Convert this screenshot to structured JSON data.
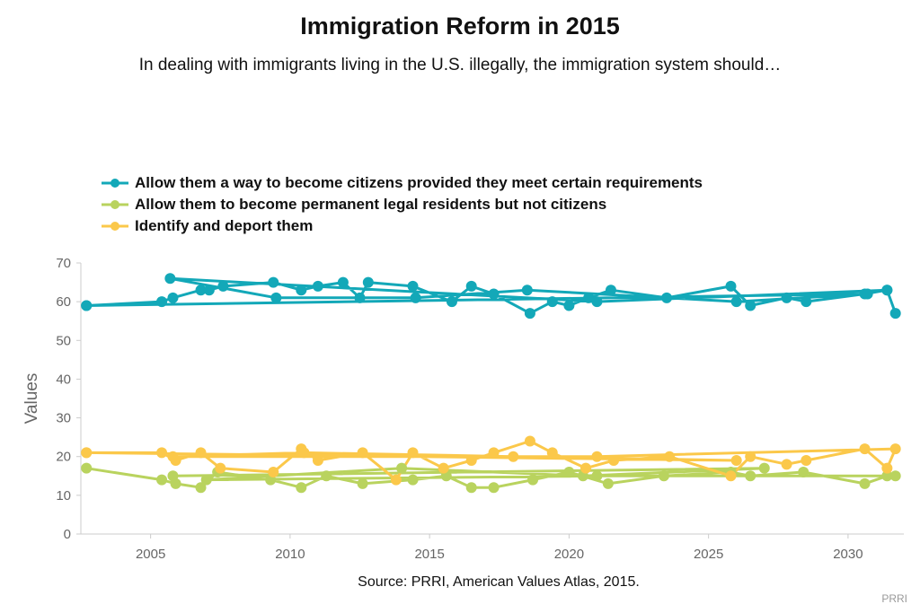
{
  "chart_data": {
    "type": "line",
    "title": "Immigration Reform in 2015",
    "subtitle": "In dealing with immigrants living in the U.S. illegally, the immigration system should…",
    "xlabel": "",
    "ylabel": "Values",
    "xlim": [
      2002.5,
      2032
    ],
    "ylim": [
      0,
      70
    ],
    "xticks": [
      2005,
      2010,
      2015,
      2020,
      2025,
      2030
    ],
    "yticks": [
      0,
      10,
      20,
      30,
      40,
      50,
      60,
      70
    ],
    "grid": false,
    "legend_position": "top-left",
    "source": "Source: PRRI, American Values Atlas, 2015.",
    "credit": "PRRI",
    "series": [
      {
        "name": "Allow them a way to become citizens provided they meet certain requirements",
        "color": "#13a8b8",
        "x": [
          2002.7,
          2005.4,
          2005.8,
          2006.8,
          2007.1,
          2007.6,
          2009.4,
          2010.4,
          2011.0,
          2011.9,
          2012.5,
          2012.8,
          2014.4,
          2015.8,
          2016.5,
          2017.3,
          2018.6,
          2019.4,
          2020.0,
          2020.7,
          2021.5,
          2023.5,
          2025.8,
          2026.5,
          2027.8,
          2028.5,
          2030.6,
          2031.4,
          2031.7,
          2031.4,
          2021.0,
          2005.7,
          2009.5,
          2014.5,
          2018.5,
          2026.0,
          2030.7,
          2002.7
        ],
        "y": [
          59,
          60,
          61,
          63,
          63,
          64,
          65,
          63,
          64,
          65,
          61,
          65,
          64,
          60,
          64,
          62,
          57,
          60,
          59,
          61,
          63,
          61,
          64,
          59,
          61,
          60,
          62,
          63,
          57,
          63,
          60,
          66,
          61,
          61,
          63,
          60,
          62,
          59
        ]
      },
      {
        "name": "Allow them to become permanent legal residents but not citizens",
        "color": "#b9d35e",
        "x": [
          2002.7,
          2005.4,
          2005.9,
          2006.8,
          2007.4,
          2009.3,
          2010.4,
          2011.3,
          2012.6,
          2014.4,
          2015.6,
          2016.5,
          2017.3,
          2018.7,
          2020.0,
          2021.4,
          2023.4,
          2025.8,
          2026.5,
          2028.4,
          2030.6,
          2031.4,
          2031.7,
          2021.0,
          2007.0,
          2014.0,
          2020.5,
          2027.0,
          2005.8
        ],
        "y": [
          17,
          14,
          13,
          12,
          16,
          14,
          12,
          15,
          13,
          14,
          15,
          12,
          12,
          14,
          16,
          13,
          15,
          16,
          15,
          16,
          13,
          15,
          15,
          15,
          14,
          17,
          15,
          17,
          15
        ]
      },
      {
        "name": "Identify and deport them",
        "color": "#fbc84a",
        "x": [
          2002.7,
          2005.4,
          2005.9,
          2006.8,
          2007.5,
          2009.4,
          2010.4,
          2011.0,
          2012.6,
          2013.8,
          2014.4,
          2015.5,
          2016.5,
          2017.3,
          2018.6,
          2019.4,
          2020.6,
          2021.6,
          2023.6,
          2025.8,
          2026.5,
          2027.8,
          2028.5,
          2030.6,
          2031.4,
          2031.7,
          2021.0,
          2005.8,
          2010.5,
          2018.0,
          2026.0,
          2002.7
        ],
        "y": [
          21,
          21,
          19,
          21,
          17,
          16,
          22,
          19,
          21,
          14,
          21,
          17,
          19,
          21,
          24,
          21,
          17,
          19,
          20,
          15,
          20,
          18,
          19,
          22,
          17,
          22,
          20,
          20,
          21,
          20,
          19,
          21
        ]
      }
    ]
  }
}
